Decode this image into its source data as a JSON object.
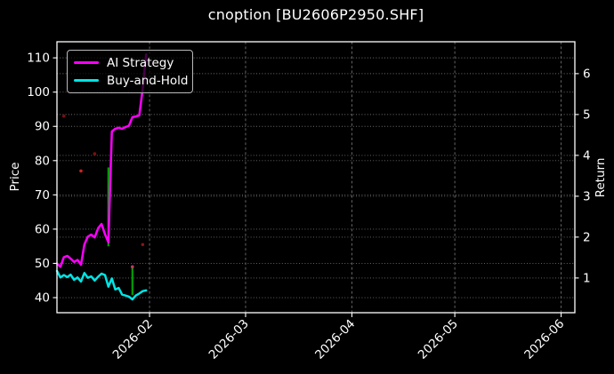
{
  "window": {
    "title": "cnoption [BU2606P2950.SHF]"
  },
  "colors": {
    "background": "#000000",
    "text": "#ffffff",
    "frame": "#ffffff",
    "grid": "#6f6f6f",
    "ai_strategy": "#ff00ff",
    "buy_and_hold": "#00e5e5",
    "trade_marker_green": "#00a000"
  },
  "legend": {
    "items": [
      {
        "label": "AI Strategy",
        "color": "#ff00ff"
      },
      {
        "label": "Buy-and-Hold",
        "color": "#00e5e5"
      }
    ]
  },
  "axes": {
    "left": {
      "label": "Price"
    },
    "right": {
      "label": "Return"
    }
  },
  "chart_data": {
    "type": "line",
    "title": "cnoption [BU2606P2950.SHF]",
    "grid": true,
    "legend_position": "upper left",
    "x_axis_range": [
      "2026-01-05",
      "2026-06-05"
    ],
    "x_ticks": [
      {
        "label": "2026-02",
        "date": "2026-02-01"
      },
      {
        "label": "2026-03",
        "date": "2026-03-01"
      },
      {
        "label": "2026-04",
        "date": "2026-04-01"
      },
      {
        "label": "2026-05",
        "date": "2026-05-01"
      },
      {
        "label": "2026-06",
        "date": "2026-06-01"
      }
    ],
    "price_axis": {
      "label": "Price",
      "ticks": [
        40,
        50,
        60,
        70,
        80,
        90,
        100,
        110
      ],
      "view_range": [
        35.6,
        114.7
      ]
    },
    "return_axis": {
      "label": "Return",
      "ticks": [
        1,
        2,
        3,
        4,
        5,
        6
      ],
      "view_range": [
        0.15,
        6.78
      ]
    },
    "dates": [
      "2026-01-05",
      "2026-01-06",
      "2026-01-07",
      "2026-01-08",
      "2026-01-09",
      "2026-01-10",
      "2026-01-11",
      "2026-01-12",
      "2026-01-13",
      "2026-01-14",
      "2026-01-15",
      "2026-01-16",
      "2026-01-17",
      "2026-01-18",
      "2026-01-19",
      "2026-01-20",
      "2026-01-21",
      "2026-01-22",
      "2026-01-23",
      "2026-01-24",
      "2026-01-25",
      "2026-01-26",
      "2026-01-27",
      "2026-01-28",
      "2026-01-29",
      "2026-01-30",
      "2026-01-31"
    ],
    "series": [
      {
        "name": "AI Strategy",
        "color": "#ff00ff",
        "axis": "price",
        "values": [
          50.0,
          49.0,
          51.8,
          52.2,
          51.4,
          50.4,
          51.0,
          49.6,
          55.5,
          57.8,
          58.4,
          57.6,
          60.3,
          61.5,
          58.5,
          56.2,
          88.5,
          89.3,
          89.6,
          89.3,
          89.8,
          90.2,
          92.7,
          92.9,
          93.2,
          101.0,
          111.0
        ]
      },
      {
        "name": "Buy-and-Hold",
        "color": "#00e5e5",
        "axis": "price",
        "values": [
          47.8,
          45.9,
          46.6,
          46.0,
          46.7,
          45.2,
          45.9,
          44.7,
          47.2,
          45.8,
          46.2,
          45.0,
          46.1,
          47.0,
          46.6,
          43.2,
          45.6,
          42.4,
          42.8,
          40.9,
          40.6,
          40.3,
          39.5,
          40.6,
          41.2,
          41.9,
          42.1
        ]
      }
    ],
    "trade_markers": [
      {
        "type": "vline",
        "date": "2026-01-20",
        "price_low": 55.0,
        "price_high": 78.0,
        "color": "#00a000"
      },
      {
        "type": "vline",
        "date": "2026-01-27",
        "price_low": 40.8,
        "price_high": 48.6,
        "color": "#00a000"
      }
    ],
    "signal_dots": [
      {
        "date": "2026-01-07",
        "price": 93.0,
        "color": "#7a1010"
      },
      {
        "date": "2026-01-12",
        "price": 77.0,
        "color": "#cc2222"
      },
      {
        "date": "2026-01-16",
        "price": 82.0,
        "color": "#7a1010"
      },
      {
        "date": "2026-01-27",
        "price": 49.0,
        "color": "#cc3366"
      },
      {
        "date": "2026-01-30",
        "price": 55.5,
        "color": "#8a1414"
      }
    ]
  }
}
